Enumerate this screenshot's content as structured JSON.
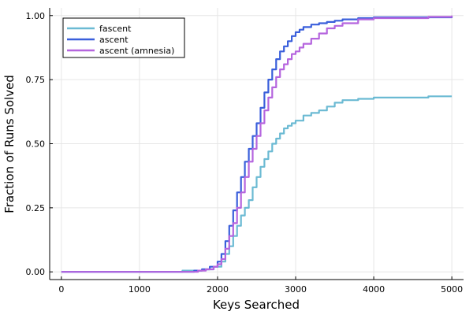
{
  "chart_data": {
    "type": "line",
    "title": "",
    "xlabel": "Keys Searched",
    "ylabel": "Fraction of Runs Solved",
    "xlim": [
      -150,
      5150
    ],
    "ylim": [
      -0.03,
      1.03
    ],
    "xticks": [
      0,
      1000,
      2000,
      3000,
      4000,
      5000
    ],
    "xtick_labels": [
      "0",
      "1000",
      "2000",
      "3000",
      "4000",
      "5000"
    ],
    "yticks": [
      0,
      0.25,
      0.5,
      0.75,
      1.0
    ],
    "ytick_labels": [
      "0.00",
      "0.25",
      "0.50",
      "0.75",
      "1.00"
    ],
    "grid": true,
    "legend_position": "top-left",
    "series": [
      {
        "name": "fascent",
        "color": "#6bbad3",
        "x": [
          0,
          1550,
          1800,
          1950,
          2050,
          2100,
          2150,
          2200,
          2250,
          2300,
          2350,
          2400,
          2450,
          2500,
          2550,
          2600,
          2650,
          2700,
          2750,
          2800,
          2850,
          2900,
          2950,
          3000,
          3100,
          3200,
          3300,
          3400,
          3500,
          3600,
          3800,
          4000,
          4500,
          4700,
          5000
        ],
        "y": [
          0,
          0.005,
          0.01,
          0.02,
          0.04,
          0.07,
          0.1,
          0.14,
          0.18,
          0.22,
          0.25,
          0.28,
          0.33,
          0.37,
          0.41,
          0.44,
          0.47,
          0.5,
          0.52,
          0.54,
          0.56,
          0.57,
          0.58,
          0.59,
          0.61,
          0.62,
          0.63,
          0.645,
          0.66,
          0.67,
          0.675,
          0.68,
          0.68,
          0.685,
          0.685
        ]
      },
      {
        "name": "ascent",
        "color": "#3a5fdb",
        "x": [
          0,
          1700,
          1800,
          1900,
          2000,
          2050,
          2100,
          2150,
          2200,
          2250,
          2300,
          2350,
          2400,
          2450,
          2500,
          2550,
          2600,
          2650,
          2700,
          2750,
          2800,
          2850,
          2900,
          2950,
          3000,
          3050,
          3100,
          3200,
          3300,
          3400,
          3500,
          3600,
          3800,
          4000,
          5000
        ],
        "y": [
          0,
          0.005,
          0.01,
          0.02,
          0.04,
          0.07,
          0.12,
          0.18,
          0.24,
          0.31,
          0.37,
          0.43,
          0.48,
          0.53,
          0.58,
          0.64,
          0.7,
          0.75,
          0.79,
          0.83,
          0.86,
          0.88,
          0.9,
          0.92,
          0.935,
          0.945,
          0.955,
          0.965,
          0.97,
          0.975,
          0.98,
          0.985,
          0.99,
          0.993,
          0.995
        ]
      },
      {
        "name": "ascent (amnesia)",
        "color": "#b565de",
        "x": [
          0,
          1750,
          1850,
          1950,
          2000,
          2050,
          2100,
          2150,
          2200,
          2250,
          2300,
          2350,
          2400,
          2450,
          2500,
          2550,
          2600,
          2650,
          2700,
          2750,
          2800,
          2850,
          2900,
          2950,
          3000,
          3050,
          3100,
          3200,
          3300,
          3400,
          3500,
          3600,
          3800,
          4000,
          4700,
          5000
        ],
        "y": [
          0,
          0.005,
          0.01,
          0.02,
          0.03,
          0.05,
          0.09,
          0.14,
          0.19,
          0.25,
          0.31,
          0.37,
          0.43,
          0.48,
          0.53,
          0.58,
          0.63,
          0.68,
          0.72,
          0.76,
          0.79,
          0.81,
          0.83,
          0.85,
          0.86,
          0.875,
          0.89,
          0.91,
          0.93,
          0.95,
          0.96,
          0.97,
          0.985,
          0.99,
          0.995,
          1.0
        ]
      }
    ]
  }
}
